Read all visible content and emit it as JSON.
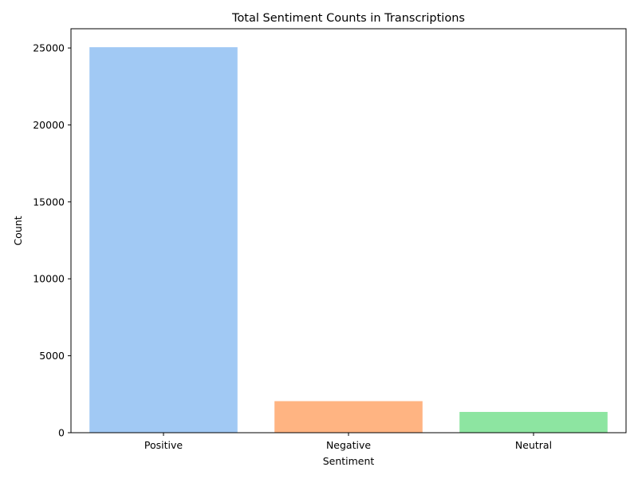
{
  "chart_data": {
    "type": "bar",
    "title": "Total Sentiment Counts in Transcriptions",
    "xlabel": "Sentiment",
    "ylabel": "Count",
    "categories": [
      "Positive",
      "Negative",
      "Neutral"
    ],
    "values": [
      25050,
      2050,
      1350
    ],
    "colors": [
      "#a1c9f4",
      "#ffb482",
      "#8de5a1"
    ],
    "ylim": [
      0,
      26250
    ],
    "yticks": [
      0,
      5000,
      10000,
      15000,
      20000,
      25000
    ],
    "grid": false
  }
}
